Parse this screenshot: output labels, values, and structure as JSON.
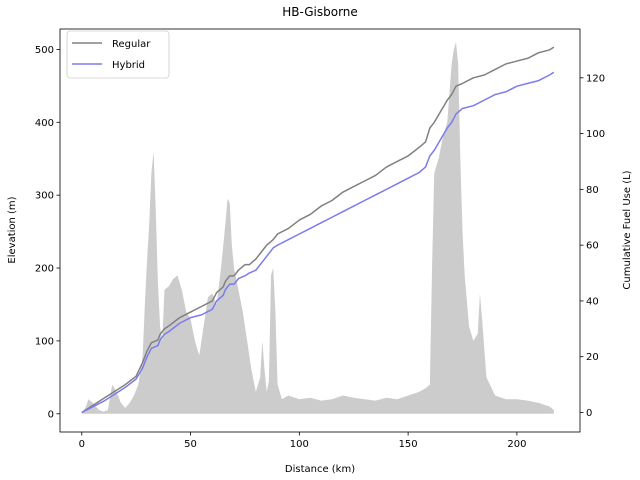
{
  "chart_data": {
    "type": "line",
    "title": "HB-Gisborne",
    "xlabel": "Distance (km)",
    "ylabel_left": "Elevation (m)",
    "ylabel_right": "Cumulative Fuel Use (L)",
    "xlim": [
      -10,
      229
    ],
    "ylim_left": [
      -25,
      528
    ],
    "ylim_right": [
      -7,
      137.5
    ],
    "x_ticks": [
      0,
      50,
      100,
      150,
      200
    ],
    "y_left_ticks": [
      0,
      100,
      200,
      300,
      400,
      500
    ],
    "y_right_ticks": [
      0,
      20,
      40,
      60,
      80,
      100,
      120
    ],
    "legend_position": "top-left",
    "elevation_area": {
      "name": "Elevation",
      "color": "#cccccc",
      "x": [
        0,
        2,
        3,
        5,
        8,
        10,
        12,
        14,
        16,
        18,
        20,
        22,
        24,
        26,
        28,
        29,
        30,
        31,
        32,
        33,
        34,
        35,
        36,
        37,
        38,
        40,
        42,
        44,
        46,
        48,
        50,
        52,
        54,
        56,
        58,
        60,
        62,
        64,
        66,
        67,
        68,
        69,
        70,
        72,
        74,
        76,
        78,
        80,
        82,
        83,
        84,
        85,
        86,
        87,
        88,
        89,
        90,
        92,
        95,
        100,
        105,
        110,
        115,
        120,
        125,
        130,
        135,
        140,
        145,
        150,
        155,
        158,
        160,
        161,
        162,
        164,
        166,
        168,
        170,
        171,
        172,
        173,
        174,
        175,
        176,
        178,
        180,
        182,
        183,
        184,
        186,
        190,
        195,
        200,
        205,
        210,
        215,
        217
      ],
      "y": [
        0,
        10,
        20,
        15,
        5,
        3,
        5,
        40,
        30,
        15,
        8,
        15,
        25,
        40,
        80,
        150,
        210,
        260,
        330,
        360,
        280,
        180,
        120,
        100,
        170,
        175,
        185,
        190,
        170,
        140,
        130,
        100,
        80,
        120,
        160,
        165,
        150,
        200,
        260,
        295,
        290,
        230,
        200,
        170,
        140,
        100,
        60,
        30,
        50,
        100,
        60,
        30,
        45,
        190,
        200,
        140,
        40,
        20,
        25,
        20,
        22,
        18,
        20,
        25,
        22,
        20,
        18,
        22,
        20,
        25,
        30,
        35,
        40,
        200,
        330,
        350,
        380,
        400,
        480,
        500,
        510,
        480,
        350,
        250,
        190,
        120,
        100,
        110,
        165,
        130,
        50,
        25,
        20,
        20,
        18,
        15,
        10,
        5
      ]
    },
    "series": [
      {
        "name": "Regular",
        "color": "#808080",
        "x": [
          0,
          10,
          20,
          25,
          28,
          30,
          32,
          35,
          36,
          38,
          40,
          45,
          50,
          55,
          60,
          62,
          65,
          66,
          68,
          70,
          72,
          75,
          77,
          80,
          82,
          85,
          88,
          90,
          95,
          100,
          105,
          110,
          115,
          120,
          125,
          130,
          135,
          140,
          145,
          150,
          155,
          158,
          160,
          162,
          165,
          168,
          170,
          172,
          175,
          180,
          185,
          190,
          195,
          200,
          205,
          210,
          215,
          217
        ],
        "y": [
          0,
          5,
          10,
          13,
          18,
          22,
          25,
          26,
          28,
          30,
          31,
          34,
          36,
          38,
          40,
          43,
          45,
          47,
          49,
          49,
          51,
          53,
          53,
          55,
          57,
          60,
          62,
          64,
          66,
          69,
          71,
          74,
          76,
          79,
          81,
          83,
          85,
          88,
          90,
          92,
          95,
          97,
          102,
          104,
          108,
          112,
          114,
          117,
          118,
          120,
          121,
          123,
          125,
          126,
          127,
          129,
          130,
          131
        ]
      },
      {
        "name": "Hybrid",
        "color": "#7b7bf0",
        "x": [
          0,
          10,
          20,
          25,
          28,
          30,
          32,
          35,
          36,
          38,
          40,
          45,
          50,
          55,
          60,
          62,
          65,
          66,
          68,
          70,
          72,
          75,
          77,
          80,
          82,
          85,
          88,
          90,
          95,
          100,
          105,
          110,
          115,
          120,
          125,
          130,
          135,
          140,
          145,
          150,
          155,
          158,
          160,
          162,
          165,
          168,
          170,
          172,
          175,
          180,
          185,
          190,
          195,
          200,
          205,
          210,
          215,
          217
        ],
        "y": [
          0,
          4,
          9,
          12,
          16,
          20,
          23,
          24,
          26,
          28,
          29,
          32,
          34,
          35,
          37,
          40,
          42,
          44,
          46,
          46,
          48,
          49,
          50,
          51,
          53,
          56,
          59,
          60,
          62,
          64,
          66,
          68,
          70,
          72,
          74,
          76,
          78,
          80,
          82,
          84,
          86,
          88,
          92,
          94,
          98,
          102,
          104,
          107,
          109,
          110,
          112,
          114,
          115,
          117,
          118,
          119,
          121,
          122
        ]
      }
    ]
  }
}
